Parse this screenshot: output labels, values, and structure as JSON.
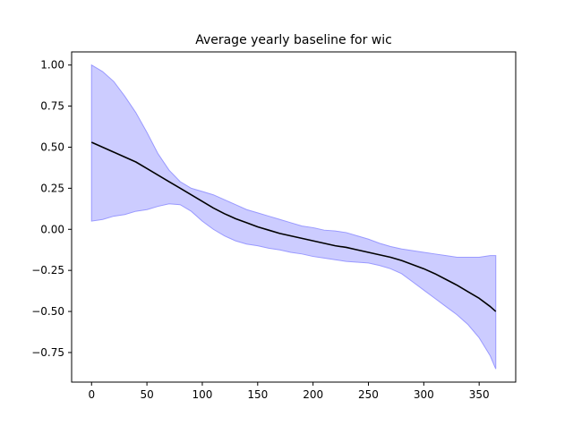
{
  "chart_data": {
    "type": "area",
    "title": "Average yearly baseline for wic",
    "xlabel": "",
    "ylabel": "",
    "xlim": [
      -18,
      383
    ],
    "ylim": [
      -0.93,
      1.08
    ],
    "xticks": [
      0,
      50,
      100,
      150,
      200,
      250,
      300,
      350
    ],
    "yticks": [
      -0.75,
      -0.5,
      -0.25,
      0.0,
      0.25,
      0.5,
      0.75,
      1.0
    ],
    "xtick_labels": [
      "0",
      "50",
      "100",
      "150",
      "200",
      "250",
      "300",
      "350"
    ],
    "ytick_labels": [
      "−0.75",
      "−0.50",
      "−0.25",
      "0.00",
      "0.25",
      "0.50",
      "0.75",
      "1.00"
    ],
    "grid": false,
    "series": [
      {
        "kind": "line",
        "color": "#000000",
        "x": [
          0,
          10,
          20,
          30,
          40,
          50,
          60,
          70,
          80,
          90,
          100,
          110,
          120,
          130,
          140,
          150,
          160,
          170,
          180,
          190,
          200,
          210,
          220,
          230,
          240,
          250,
          260,
          270,
          280,
          290,
          300,
          310,
          320,
          330,
          340,
          350,
          360,
          365
        ],
        "y": [
          0.53,
          0.5,
          0.47,
          0.44,
          0.41,
          0.37,
          0.33,
          0.29,
          0.25,
          0.21,
          0.17,
          0.13,
          0.095,
          0.065,
          0.04,
          0.015,
          -0.005,
          -0.025,
          -0.04,
          -0.055,
          -0.07,
          -0.085,
          -0.1,
          -0.11,
          -0.125,
          -0.14,
          -0.155,
          -0.17,
          -0.19,
          -0.215,
          -0.24,
          -0.27,
          -0.305,
          -0.34,
          -0.38,
          -0.42,
          -0.47,
          -0.5
        ]
      },
      {
        "kind": "band",
        "color": "#ccccff",
        "edge_color": "#9999ff",
        "x": [
          0,
          10,
          20,
          30,
          40,
          50,
          60,
          70,
          80,
          90,
          100,
          110,
          120,
          130,
          140,
          150,
          160,
          170,
          180,
          190,
          200,
          210,
          220,
          230,
          240,
          250,
          260,
          270,
          280,
          290,
          300,
          310,
          320,
          330,
          340,
          350,
          360,
          365
        ],
        "upper": [
          1.0,
          0.96,
          0.9,
          0.81,
          0.71,
          0.59,
          0.46,
          0.36,
          0.29,
          0.25,
          0.23,
          0.21,
          0.18,
          0.15,
          0.12,
          0.1,
          0.08,
          0.06,
          0.04,
          0.02,
          0.01,
          -0.005,
          -0.01,
          -0.02,
          -0.04,
          -0.06,
          -0.085,
          -0.105,
          -0.12,
          -0.13,
          -0.14,
          -0.15,
          -0.16,
          -0.17,
          -0.17,
          -0.17,
          -0.16,
          -0.16
        ],
        "lower": [
          0.05,
          0.06,
          0.08,
          0.09,
          0.11,
          0.12,
          0.14,
          0.155,
          0.15,
          0.11,
          0.05,
          0.0,
          -0.04,
          -0.07,
          -0.09,
          -0.1,
          -0.115,
          -0.125,
          -0.14,
          -0.15,
          -0.165,
          -0.175,
          -0.185,
          -0.195,
          -0.2,
          -0.205,
          -0.22,
          -0.24,
          -0.27,
          -0.32,
          -0.37,
          -0.42,
          -0.47,
          -0.52,
          -0.58,
          -0.66,
          -0.77,
          -0.85
        ]
      }
    ]
  }
}
